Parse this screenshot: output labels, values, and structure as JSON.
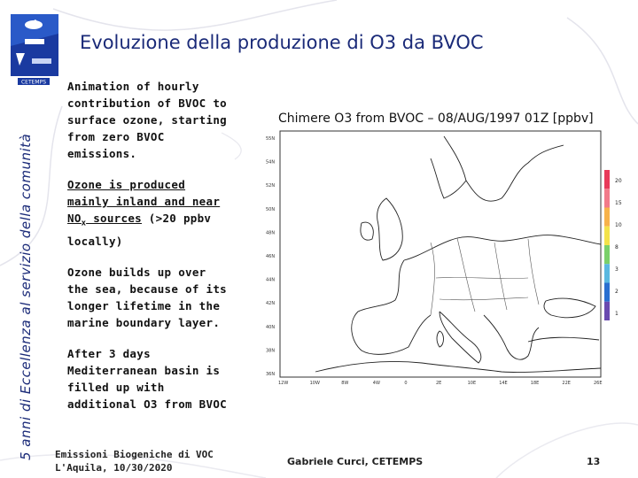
{
  "sidebar": {
    "vertical_text": "5 anni di Eccellenza al servizio della comunità",
    "logo_text": "CETEMPS"
  },
  "header": {
    "title": "Evoluzione della produzione di O3 da BVOC"
  },
  "bullets": {
    "b1": "Animation of hourly contribution of BVOC to surface ozone, starting from zero BVOC emissions.",
    "b2_pre": "Ozone is produced mainly inland and near ",
    "b2_nox": "NO",
    "b2_sub": "x",
    "b2_ul_end": " sources",
    "b2_post": " (>20 ppbv locally)",
    "b3": "Ozone builds up over the sea, because of its longer lifetime in the marine boundary layer.",
    "b4": "After 3 days Mediterranean basin is filled up with additional O3 from BVOC"
  },
  "map": {
    "title": "Chimere O3 from BVOC – 08/AUG/1997 01Z [ppbv]",
    "lat_labels": [
      "55N",
      "54N",
      "52N",
      "50N",
      "48N",
      "46N",
      "44N",
      "42N",
      "40N",
      "38N",
      "36N"
    ],
    "lon_labels": [
      "12W",
      "10W",
      "8W",
      "4W",
      "0",
      "2E",
      "10E",
      "14E",
      "18E",
      "22E",
      "26E"
    ],
    "colorbar_labels": [
      "20",
      "15",
      "10",
      "8",
      "3",
      "2",
      "1"
    ],
    "colorbar_colors": [
      "#e83a5a",
      "#f27a8a",
      "#f7b24a",
      "#f3e24a",
      "#7ad06a",
      "#5ab8e0",
      "#2a6fd0",
      "#6a4ab0"
    ]
  },
  "footer": {
    "left_line1": "Emissioni Biogeniche di VOC",
    "left_line2": "L'Aquila, 10/30/2020",
    "center": "Gabriele Curci, CETEMPS",
    "page_number": "13"
  }
}
